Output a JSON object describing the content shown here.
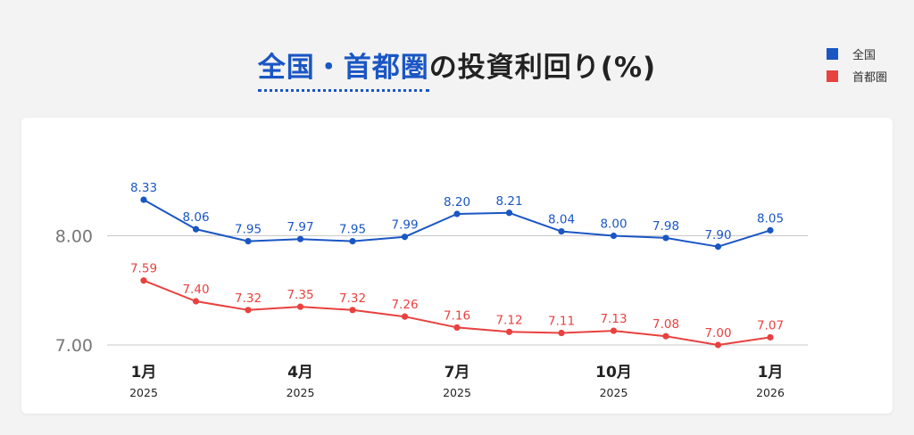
{
  "title": {
    "accent": "全国・首都圏",
    "rest": "の投資利回り(%)"
  },
  "legend": [
    {
      "label": "全国",
      "color": "#1a56c4"
    },
    {
      "label": "首都圏",
      "color": "#e8413f"
    }
  ],
  "chart_data": {
    "type": "line",
    "title": "全国・首都圏の投資利回り(%)",
    "x": [
      "2025-01",
      "2025-02",
      "2025-03",
      "2025-04",
      "2025-05",
      "2025-06",
      "2025-07",
      "2025-08",
      "2025-09",
      "2025-10",
      "2025-11",
      "2025-12",
      "2026-01"
    ],
    "x_tick_labels": [
      {
        "month": "1月",
        "year": "2025"
      },
      {
        "month": "4月",
        "year": "2025"
      },
      {
        "month": "7月",
        "year": "2025"
      },
      {
        "month": "10月",
        "year": "2025"
      },
      {
        "month": "1月",
        "year": "2026"
      }
    ],
    "y_tick_labels": [
      "8.00",
      "7.00"
    ],
    "ylim": [
      6.98,
      8.55
    ],
    "grid": true,
    "legend_position": "top-right",
    "series": [
      {
        "name": "全国",
        "color": "#1a56c4",
        "values": [
          8.33,
          8.06,
          7.95,
          7.97,
          7.95,
          7.99,
          8.2,
          8.21,
          8.04,
          8.0,
          7.98,
          7.9,
          8.05
        ],
        "labels": [
          "8.33",
          "8.06",
          "7.95",
          "7.97",
          "7.95",
          "7.99",
          "8.20",
          "8.21",
          "8.04",
          "8.00",
          "7.98",
          "7.90",
          "8.05"
        ]
      },
      {
        "name": "首都圏",
        "color": "#e8413f",
        "values": [
          7.59,
          7.4,
          7.32,
          7.35,
          7.32,
          7.26,
          7.16,
          7.12,
          7.11,
          7.13,
          7.08,
          7.0,
          7.07
        ],
        "labels": [
          "7.59",
          "7.40",
          "7.32",
          "7.35",
          "7.32",
          "7.26",
          "7.16",
          "7.12",
          "7.11",
          "7.13",
          "7.08",
          "7.00",
          "7.07"
        ]
      }
    ]
  }
}
